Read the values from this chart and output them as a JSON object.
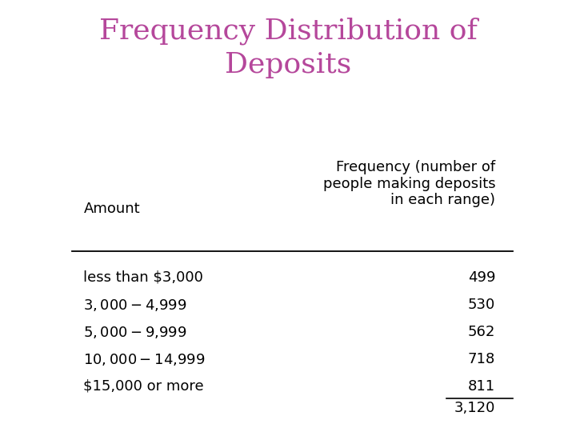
{
  "title_line1": "Frequency Distribution of",
  "title_line2": "Deposits",
  "title_color": "#b5479b",
  "background_color": "#ffffff",
  "col1_header": "Amount",
  "col2_header": "Frequency (number of\npeople making deposits\nin each range)",
  "rows": [
    [
      "less than $3,000",
      "499"
    ],
    [
      "$3,000 - $4,999",
      "530"
    ],
    [
      "$5,000 - $9,999",
      "562"
    ],
    [
      "$10,000 - $14,999",
      "718"
    ],
    [
      "$15,000 or more",
      "811"
    ]
  ],
  "total": "3,120",
  "text_color": "#000000",
  "header_fontsize": 13,
  "title_fontsize": 26,
  "body_fontsize": 13
}
